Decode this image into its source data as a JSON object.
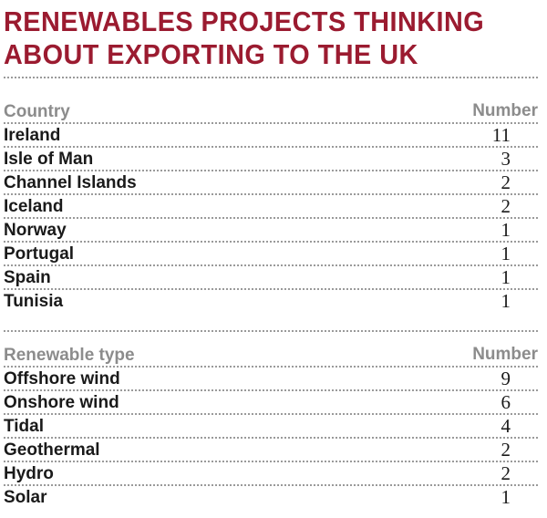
{
  "chart_data": {
    "type": "table",
    "title_lines": [
      "RENEWABLES PROJECTS THINKING",
      "ABOUT EXPORTING TO THE UK"
    ],
    "tables": [
      {
        "label_header": "Country",
        "value_header": "Number",
        "rows": [
          {
            "label": "Ireland",
            "value": 11
          },
          {
            "label": "Isle of Man",
            "value": 3
          },
          {
            "label": "Channel Islands",
            "value": 2
          },
          {
            "label": "Iceland",
            "value": 2
          },
          {
            "label": "Norway",
            "value": 1
          },
          {
            "label": "Portugal",
            "value": 1
          },
          {
            "label": "Spain",
            "value": 1
          },
          {
            "label": "Tunisia",
            "value": 1
          }
        ]
      },
      {
        "label_header": "Renewable type",
        "value_header": "Number",
        "rows": [
          {
            "label": "Offshore wind",
            "value": 9
          },
          {
            "label": "Onshore wind",
            "value": 6
          },
          {
            "label": "Tidal",
            "value": 4
          },
          {
            "label": "Geothermal",
            "value": 2
          },
          {
            "label": "Hydro",
            "value": 2
          },
          {
            "label": "Solar",
            "value": 1
          }
        ]
      }
    ]
  },
  "colors": {
    "title": "#9b1b30",
    "header_text": "#8c8c8c",
    "body_text": "#1a1a1a",
    "rule": "#9a9a9a"
  }
}
